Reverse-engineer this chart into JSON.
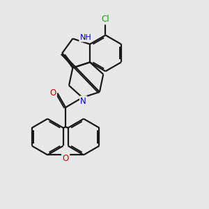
{
  "bg_color": "#e8e8e8",
  "bond_color": "#1a1a1a",
  "n_color": "#0000cc",
  "o_color": "#cc0000",
  "cl_color": "#00aa00",
  "line_width": 1.6,
  "fig_size": [
    3.0,
    3.0
  ],
  "dpi": 100,
  "xlim": [
    0,
    10
  ],
  "ylim": [
    0,
    10
  ]
}
